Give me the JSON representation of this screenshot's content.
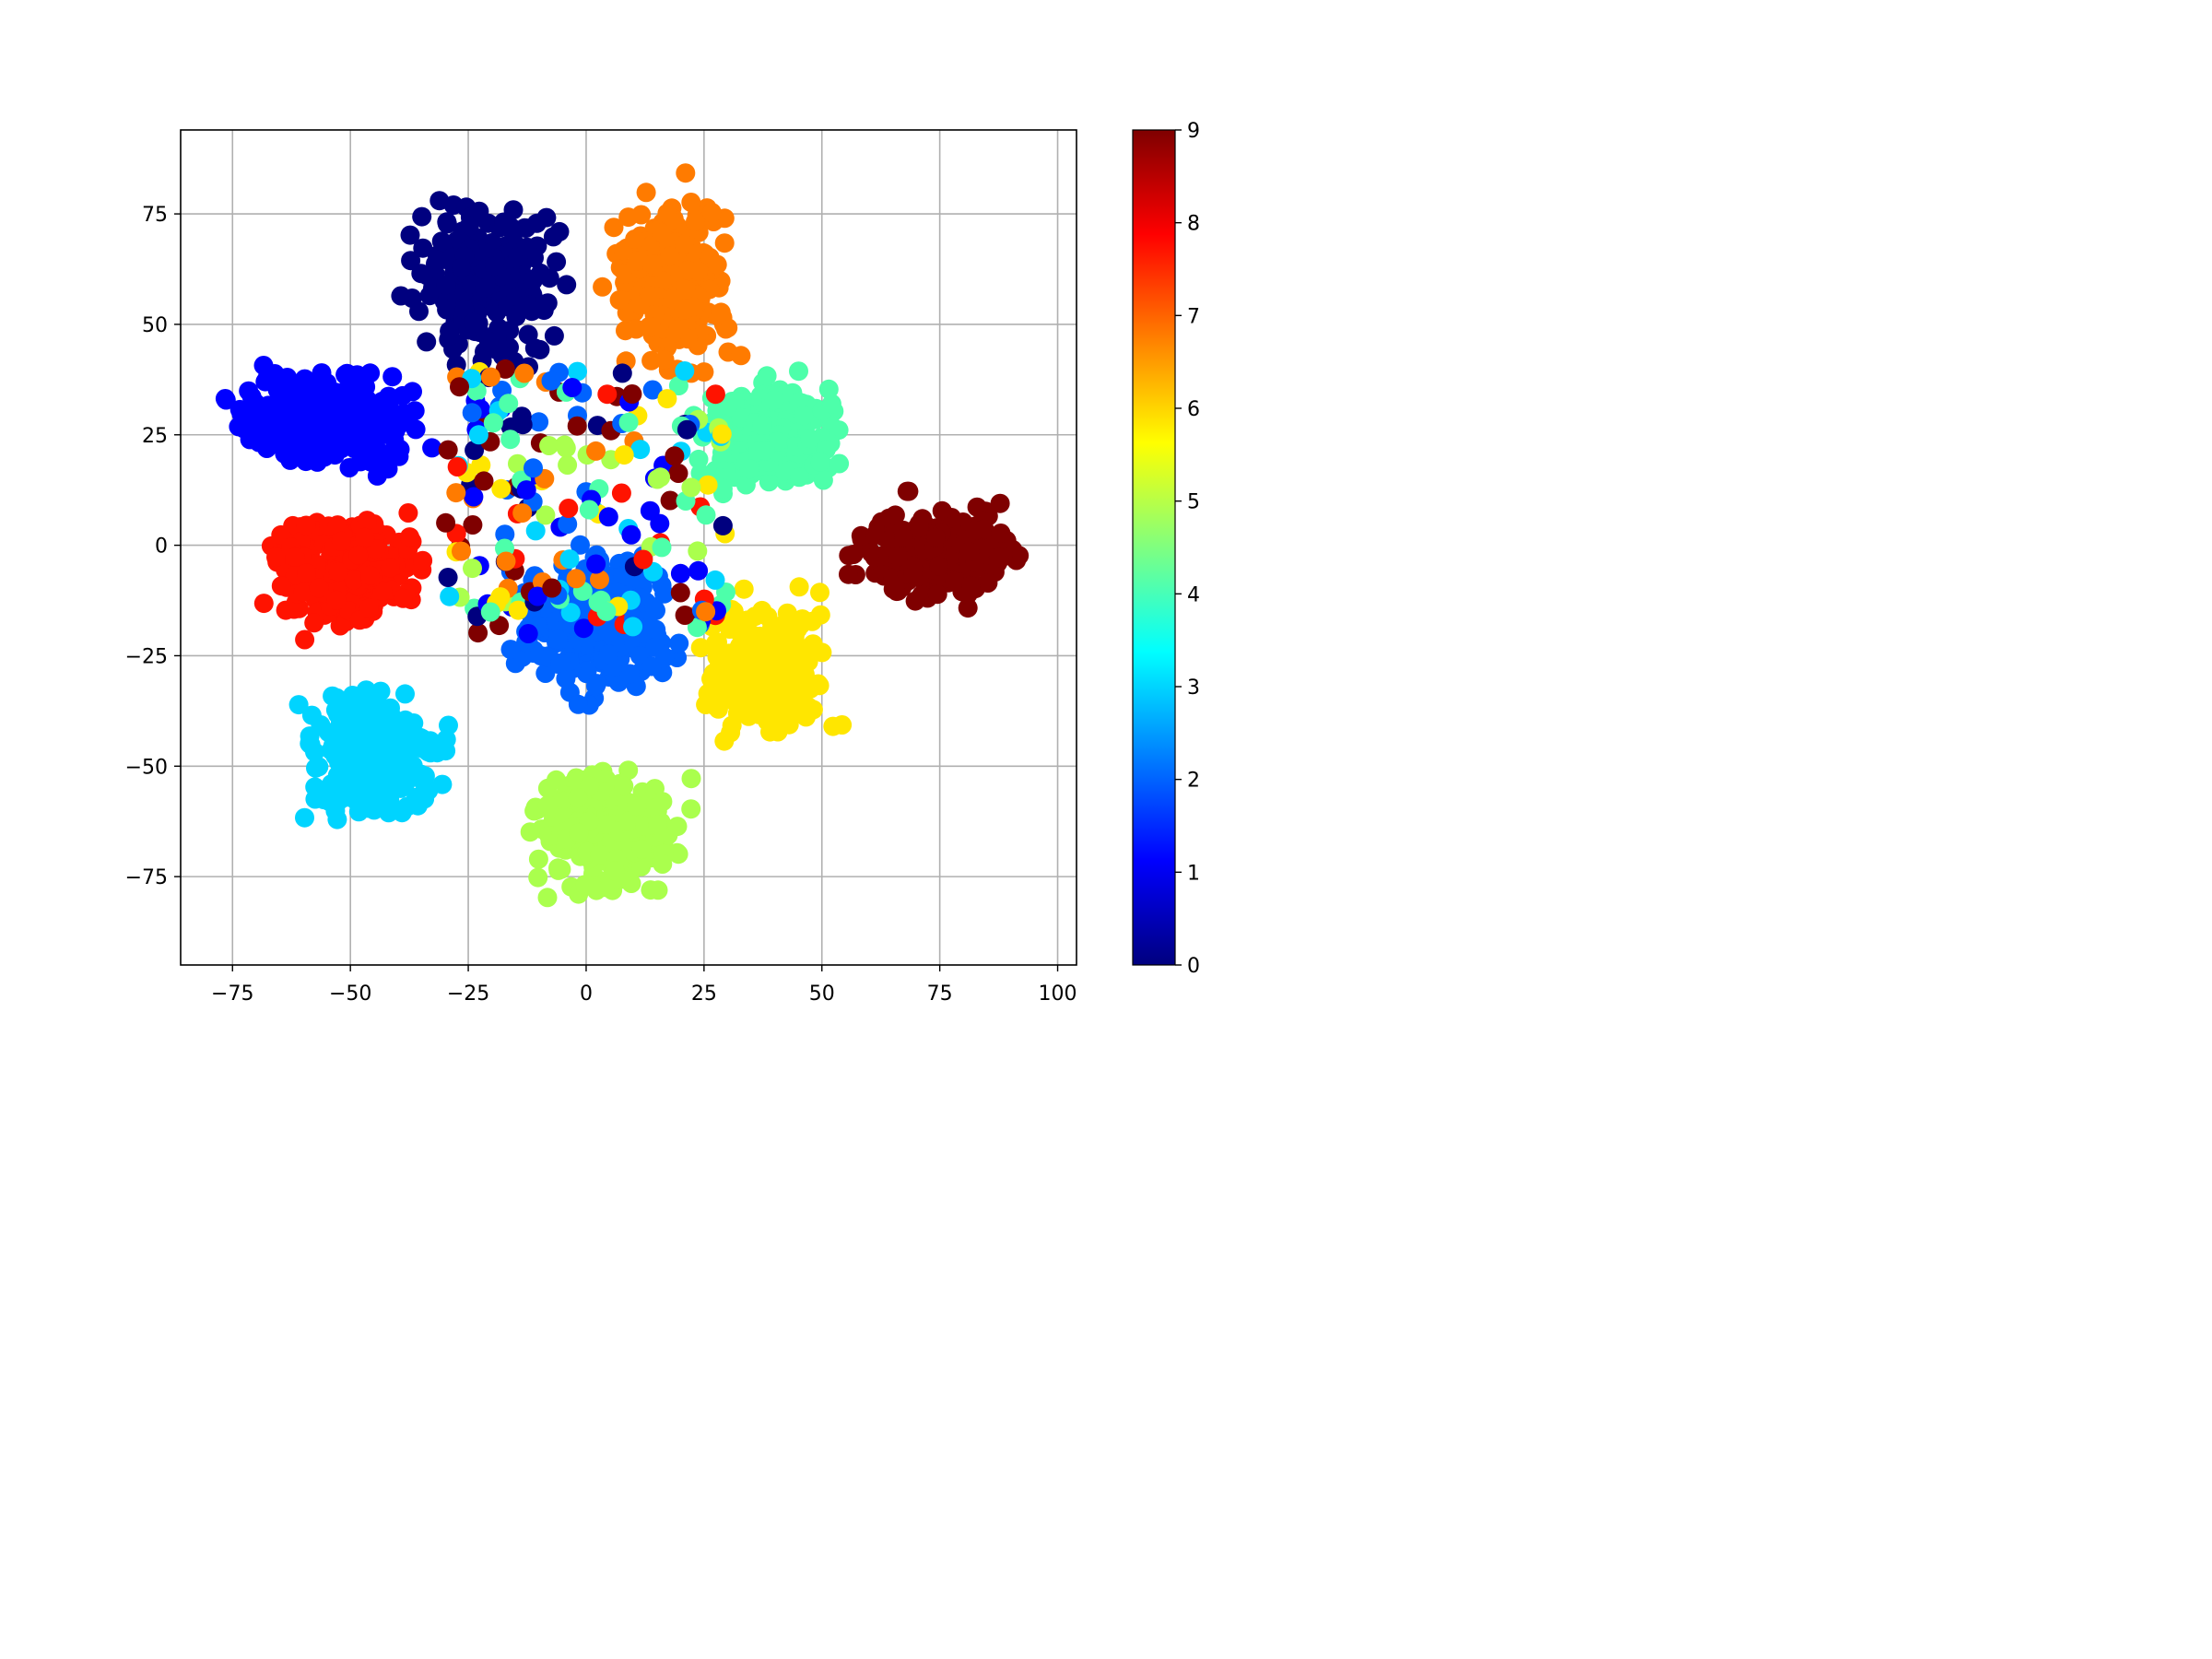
{
  "chart_data": {
    "type": "scatter",
    "title": "",
    "xlabel": "",
    "ylabel": "",
    "xlim": [
      -86,
      104
    ],
    "ylim": [
      -95,
      94
    ],
    "grid": true,
    "x_ticks": [
      -75,
      -50,
      -25,
      0,
      25,
      50,
      75,
      100
    ],
    "x_tick_labels": [
      "−75",
      "−50",
      "−25",
      "0",
      "25",
      "50",
      "75",
      "100"
    ],
    "y_ticks": [
      -75,
      -50,
      -25,
      0,
      25,
      50,
      75
    ],
    "y_tick_labels": [
      "−75",
      "−50",
      "−25",
      "0",
      "25",
      "50",
      "75"
    ],
    "colorbar": {
      "colormap": "jet",
      "range": [
        0,
        9
      ],
      "ticks": [
        0,
        1,
        2,
        3,
        4,
        5,
        6,
        7,
        8,
        9
      ],
      "tick_labels": [
        "0",
        "1",
        "2",
        "3",
        "4",
        "5",
        "6",
        "7",
        "8",
        "9"
      ]
    },
    "class_colors": {
      "0": "#00007f",
      "1": "#0000ff",
      "2": "#0063ff",
      "3": "#00d4ff",
      "4": "#4dffaa",
      "5": "#aaff4d",
      "6": "#ffe600",
      "7": "#ff7b00",
      "8": "#ff1300",
      "9": "#7f0000"
    },
    "clusters": [
      {
        "label": 0,
        "center": [
          -22,
          60
        ],
        "approx_x_range": [
          -40,
          2
        ],
        "approx_y_range": [
          30,
          78
        ]
      },
      {
        "label": 1,
        "center": [
          -55,
          28
        ],
        "approx_x_range": [
          -78,
          -22
        ],
        "approx_y_range": [
          12,
          43
        ]
      },
      {
        "label": 2,
        "center": [
          2,
          -18
        ],
        "approx_x_range": [
          -25,
          20
        ],
        "approx_y_range": [
          -40,
          5
        ]
      },
      {
        "label": 3,
        "center": [
          -45,
          -48
        ],
        "approx_x_range": [
          -65,
          -25
        ],
        "approx_y_range": [
          -70,
          -30
        ]
      },
      {
        "label": 4,
        "center": [
          38,
          25
        ],
        "approx_x_range": [
          18,
          57
        ],
        "approx_y_range": [
          8,
          43
        ]
      },
      {
        "label": 5,
        "center": [
          5,
          -65
        ],
        "approx_x_range": [
          -17,
          27
        ],
        "approx_y_range": [
          -87,
          -48
        ]
      },
      {
        "label": 6,
        "center": [
          38,
          -28
        ],
        "approx_x_range": [
          18,
          57
        ],
        "approx_y_range": [
          -48,
          -3
        ]
      },
      {
        "label": 7,
        "center": [
          18,
          60
        ],
        "approx_x_range": [
          3,
          38
        ],
        "approx_y_range": [
          28,
          85
        ]
      },
      {
        "label": 8,
        "center": [
          -52,
          -6
        ],
        "approx_x_range": [
          -70,
          -28
        ],
        "approx_y_range": [
          -25,
          10
        ]
      },
      {
        "label": 9,
        "center": [
          75,
          -2
        ],
        "approx_x_range": [
          48,
          96
        ],
        "approx_y_range": [
          -18,
          13
        ]
      }
    ]
  }
}
